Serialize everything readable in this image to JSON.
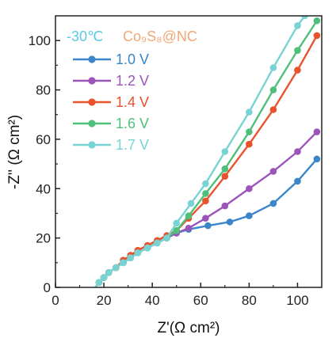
{
  "chart_data": {
    "type": "scatter",
    "xlabel": "Z'(Ω cm²)",
    "ylabel": "-Z'' (Ω cm²)",
    "xlim": [
      0,
      110
    ],
    "ylim": [
      0,
      110
    ],
    "xticks": [
      "0",
      "20",
      "40",
      "60",
      "80",
      "100"
    ],
    "yticks": [
      "0",
      "20",
      "40",
      "60",
      "80",
      "100"
    ],
    "grid": false,
    "legend_position": "top-left",
    "annotations": {
      "temperature": "-30℃",
      "material": "Co₉S₈@NC"
    },
    "colors": {
      "temperature": "#5bc8e6",
      "material": "#f0a878"
    },
    "series": [
      {
        "name": "1.0 V",
        "color": "#3a86c8",
        "points": [
          [
            16.5,
            0
          ],
          [
            18,
            2
          ],
          [
            20,
            4
          ],
          [
            22,
            6
          ],
          [
            25,
            8
          ],
          [
            28,
            10
          ],
          [
            31,
            12
          ],
          [
            34,
            14
          ],
          [
            38,
            16
          ],
          [
            42,
            18
          ],
          [
            46,
            20
          ],
          [
            50,
            22
          ],
          [
            55,
            23.5
          ],
          [
            63,
            25
          ],
          [
            72,
            26.5
          ],
          [
            80,
            29
          ],
          [
            90,
            34
          ],
          [
            100,
            43
          ],
          [
            108,
            52
          ]
        ]
      },
      {
        "name": "1.2 V",
        "color": "#9b55b8",
        "points": [
          [
            16.5,
            0
          ],
          [
            18,
            2
          ],
          [
            20,
            4
          ],
          [
            22,
            6
          ],
          [
            25,
            8
          ],
          [
            28,
            10
          ],
          [
            31,
            12
          ],
          [
            34,
            14
          ],
          [
            38,
            16
          ],
          [
            42,
            18
          ],
          [
            46,
            20
          ],
          [
            50,
            22
          ],
          [
            55,
            24
          ],
          [
            62,
            28
          ],
          [
            70,
            33
          ],
          [
            80,
            40
          ],
          [
            90,
            47
          ],
          [
            100,
            55
          ],
          [
            108,
            63
          ]
        ]
      },
      {
        "name": "1.4 V",
        "color": "#e8532e",
        "points": [
          [
            16.5,
            0
          ],
          [
            18,
            2
          ],
          [
            20,
            4
          ],
          [
            22,
            6
          ],
          [
            25,
            8
          ],
          [
            28,
            11
          ],
          [
            31,
            13
          ],
          [
            34,
            15
          ],
          [
            38,
            17
          ],
          [
            42,
            19
          ],
          [
            46,
            21
          ],
          [
            50,
            23
          ],
          [
            55,
            28
          ],
          [
            62,
            35
          ],
          [
            70,
            45
          ],
          [
            80,
            58
          ],
          [
            90,
            72
          ],
          [
            100,
            88
          ],
          [
            108,
            102
          ]
        ]
      },
      {
        "name": "1.6 V",
        "color": "#4fc07a",
        "points": [
          [
            16.5,
            0
          ],
          [
            18,
            2
          ],
          [
            20,
            4
          ],
          [
            22,
            6
          ],
          [
            25,
            8
          ],
          [
            28,
            10
          ],
          [
            31,
            12
          ],
          [
            34,
            14
          ],
          [
            38,
            16
          ],
          [
            42,
            18
          ],
          [
            46,
            20
          ],
          [
            50,
            23
          ],
          [
            55,
            29
          ],
          [
            62,
            38
          ],
          [
            70,
            48
          ],
          [
            80,
            63
          ],
          [
            90,
            80
          ],
          [
            100,
            96
          ],
          [
            108,
            108
          ]
        ]
      },
      {
        "name": "1.7 V",
        "color": "#78d4d4",
        "points": [
          [
            16.5,
            0
          ],
          [
            18,
            2
          ],
          [
            20,
            4
          ],
          [
            22,
            6
          ],
          [
            25,
            8
          ],
          [
            28,
            10
          ],
          [
            31,
            12
          ],
          [
            34,
            14
          ],
          [
            38,
            16
          ],
          [
            42,
            18
          ],
          [
            46,
            20
          ],
          [
            50,
            26
          ],
          [
            56,
            34
          ],
          [
            62,
            42
          ],
          [
            70,
            55
          ],
          [
            80,
            71
          ],
          [
            90,
            89
          ],
          [
            100,
            106
          ],
          [
            103,
            110
          ]
        ]
      }
    ]
  }
}
